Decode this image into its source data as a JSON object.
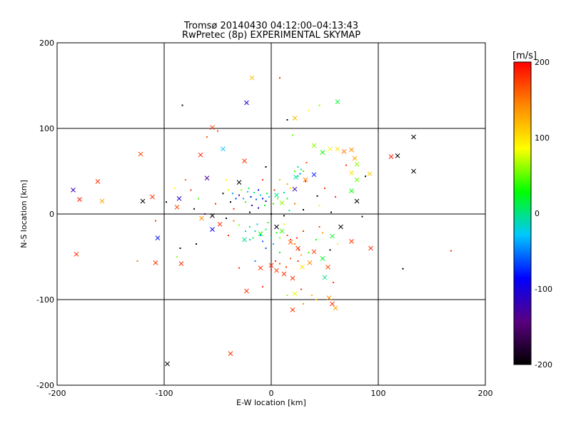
{
  "chart_data": {
    "type": "scatter",
    "title": "Tromsø 20140430 04:12:00–04:13:43",
    "subtitle": "RwPretec (8p) EXPERIMENTAL SKYMAP",
    "xlabel": "E-W location [km]",
    "ylabel": "N-S location [km]",
    "xlim": [
      -200,
      200
    ],
    "ylim": [
      -200,
      200
    ],
    "x_ticks": [
      -200,
      -100,
      0,
      100,
      200
    ],
    "y_ticks": [
      -200,
      -100,
      0,
      100,
      200
    ],
    "grid": true,
    "colorbar": {
      "label": "[m/s]",
      "min": -200,
      "max": 200,
      "ticks": [
        200,
        100,
        0,
        -100,
        -200
      ],
      "colors": [
        "#000000",
        "#5a0080",
        "#0000ff",
        "#00c8ff",
        "#00ff00",
        "#ffff00",
        "#ff8800",
        "#ff0000"
      ]
    },
    "series": [
      {
        "marker": "x",
        "points": [
          {
            "x": -23,
            "y": 130,
            "v": -110
          },
          {
            "x": -18,
            "y": 159,
            "v": 120
          },
          {
            "x": 22,
            "y": 112,
            "v": 120
          },
          {
            "x": 62,
            "y": 131,
            "v": 20
          },
          {
            "x": 133,
            "y": 90,
            "v": -200
          },
          {
            "x": 118,
            "y": 68,
            "v": -200
          },
          {
            "x": 133,
            "y": 50,
            "v": -200
          },
          {
            "x": 112,
            "y": 67,
            "v": 190
          },
          {
            "x": -55,
            "y": 101,
            "v": 180
          },
          {
            "x": -122,
            "y": 70,
            "v": 170
          },
          {
            "x": -66,
            "y": 69,
            "v": 190
          },
          {
            "x": -45,
            "y": 76,
            "v": -30
          },
          {
            "x": -25,
            "y": 62,
            "v": 180
          },
          {
            "x": -185,
            "y": 28,
            "v": -120
          },
          {
            "x": -162,
            "y": 38,
            "v": 180
          },
          {
            "x": -179,
            "y": 17,
            "v": 190
          },
          {
            "x": -158,
            "y": 15,
            "v": 130
          },
          {
            "x": -120,
            "y": 15,
            "v": -200
          },
          {
            "x": -111,
            "y": 20,
            "v": 180
          },
          {
            "x": -86,
            "y": 18,
            "v": -110
          },
          {
            "x": -60,
            "y": 42,
            "v": -130
          },
          {
            "x": -88,
            "y": 8,
            "v": 170
          },
          {
            "x": -30,
            "y": 37,
            "v": -200
          },
          {
            "x": -106,
            "y": -28,
            "v": -80
          },
          {
            "x": -108,
            "y": -57,
            "v": 180
          },
          {
            "x": -182,
            "y": -47,
            "v": 180
          },
          {
            "x": -84,
            "y": -58,
            "v": 180
          },
          {
            "x": 40,
            "y": 80,
            "v": 60
          },
          {
            "x": 48,
            "y": 72,
            "v": 30
          },
          {
            "x": 55,
            "y": 76,
            "v": 80
          },
          {
            "x": 62,
            "y": 76,
            "v": 100
          },
          {
            "x": 68,
            "y": 73,
            "v": 150
          },
          {
            "x": 75,
            "y": 75,
            "v": 140
          },
          {
            "x": 78,
            "y": 65,
            "v": 130
          },
          {
            "x": 80,
            "y": 58,
            "v": 60
          },
          {
            "x": 75,
            "y": 48,
            "v": 100
          },
          {
            "x": 80,
            "y": 40,
            "v": 50
          },
          {
            "x": 92,
            "y": 47,
            "v": 110
          },
          {
            "x": 75,
            "y": 27,
            "v": 30
          },
          {
            "x": 80,
            "y": 15,
            "v": -200
          },
          {
            "x": 40,
            "y": 46,
            "v": -80
          },
          {
            "x": 32,
            "y": 40,
            "v": 150
          },
          {
            "x": 23,
            "y": 43,
            "v": -10
          },
          {
            "x": 22,
            "y": 29,
            "v": -120
          },
          {
            "x": 5,
            "y": 22,
            "v": 0
          },
          {
            "x": 10,
            "y": 13,
            "v": 60
          },
          {
            "x": 65,
            "y": -15,
            "v": -200
          },
          {
            "x": 75,
            "y": -32,
            "v": 180
          },
          {
            "x": 93,
            "y": -40,
            "v": 180
          },
          {
            "x": 57,
            "y": -26,
            "v": 20
          },
          {
            "x": 48,
            "y": -52,
            "v": 20
          },
          {
            "x": 53,
            "y": -62,
            "v": 170
          },
          {
            "x": 36,
            "y": -57,
            "v": 140
          },
          {
            "x": 29,
            "y": -62,
            "v": 100
          },
          {
            "x": 50,
            "y": -74,
            "v": 0
          },
          {
            "x": 40,
            "y": -44,
            "v": 180
          },
          {
            "x": 25,
            "y": -40,
            "v": 180
          },
          {
            "x": 18,
            "y": -33,
            "v": 160
          },
          {
            "x": 0,
            "y": -60,
            "v": 180
          },
          {
            "x": 5,
            "y": -66,
            "v": 180
          },
          {
            "x": 12,
            "y": -70,
            "v": 180
          },
          {
            "x": -10,
            "y": -63,
            "v": 180
          },
          {
            "x": 20,
            "y": -75,
            "v": 180
          },
          {
            "x": 20,
            "y": -112,
            "v": 180
          },
          {
            "x": 60,
            "y": -110,
            "v": 130
          },
          {
            "x": 57,
            "y": -105,
            "v": 180
          },
          {
            "x": 54,
            "y": -98,
            "v": 140
          },
          {
            "x": 22,
            "y": -93,
            "v": 80
          },
          {
            "x": -23,
            "y": -90,
            "v": 180
          },
          {
            "x": -38,
            "y": -163,
            "v": 180
          },
          {
            "x": -97,
            "y": -175,
            "v": -200
          },
          {
            "x": -10,
            "y": -23,
            "v": 30
          },
          {
            "x": -25,
            "y": -30,
            "v": 0
          },
          {
            "x": 10,
            "y": -20,
            "v": 40
          },
          {
            "x": 5,
            "y": -15,
            "v": -200
          },
          {
            "x": -55,
            "y": -2,
            "v": -200
          },
          {
            "x": -48,
            "y": -12,
            "v": 180
          },
          {
            "x": -55,
            "y": -18,
            "v": -90
          },
          {
            "x": -65,
            "y": -5,
            "v": 140
          }
        ]
      },
      {
        "marker": "dot",
        "points": [
          {
            "x": 15,
            "y": 110,
            "v": -200
          },
          {
            "x": -50,
            "y": 97,
            "v": 170
          },
          {
            "x": 8,
            "y": 159,
            "v": 180
          },
          {
            "x": -83,
            "y": 127,
            "v": -200
          },
          {
            "x": 35,
            "y": 121,
            "v": 90
          },
          {
            "x": 45,
            "y": 127,
            "v": 60
          },
          {
            "x": 20,
            "y": 92,
            "v": 50
          },
          {
            "x": 168,
            "y": -43,
            "v": 180
          },
          {
            "x": 123,
            "y": -64,
            "v": -200
          },
          {
            "x": 85,
            "y": -3,
            "v": -200
          },
          {
            "x": 56,
            "y": 2,
            "v": -200
          },
          {
            "x": 55,
            "y": -42,
            "v": -200
          },
          {
            "x": 33,
            "y": 60,
            "v": 170
          },
          {
            "x": 43,
            "y": 21,
            "v": -200
          },
          {
            "x": 50,
            "y": 30,
            "v": 180
          },
          {
            "x": 45,
            "y": 10,
            "v": 90
          },
          {
            "x": 30,
            "y": 5,
            "v": -200
          },
          {
            "x": -72,
            "y": 6,
            "v": -200
          },
          {
            "x": -68,
            "y": 18,
            "v": 40
          },
          {
            "x": -62,
            "y": 0,
            "v": -150
          },
          {
            "x": -52,
            "y": 12,
            "v": 180
          },
          {
            "x": -45,
            "y": 24,
            "v": -200
          },
          {
            "x": -40,
            "y": 28,
            "v": 80
          },
          {
            "x": -38,
            "y": 14,
            "v": -200
          },
          {
            "x": -35,
            "y": 6,
            "v": 180
          },
          {
            "x": -75,
            "y": 28,
            "v": 180
          },
          {
            "x": -90,
            "y": 30,
            "v": 90
          },
          {
            "x": -98,
            "y": 14,
            "v": -200
          },
          {
            "x": -42,
            "y": -5,
            "v": -200
          },
          {
            "x": -30,
            "y": -13,
            "v": 60
          },
          {
            "x": -20,
            "y": 2,
            "v": -200
          },
          {
            "x": -12,
            "y": 7,
            "v": -120
          },
          {
            "x": 0,
            "y": 0,
            "v": -200
          },
          {
            "x": 12,
            "y": -2,
            "v": -200
          },
          {
            "x": 17,
            "y": 4,
            "v": 0
          },
          {
            "x": 22,
            "y": 12,
            "v": 150
          },
          {
            "x": -5,
            "y": 15,
            "v": -100
          },
          {
            "x": 3,
            "y": 28,
            "v": 180
          },
          {
            "x": 18,
            "y": 30,
            "v": 100
          },
          {
            "x": 8,
            "y": 40,
            "v": 120
          },
          {
            "x": -8,
            "y": 40,
            "v": 180
          },
          {
            "x": -80,
            "y": 40,
            "v": 160
          },
          {
            "x": -42,
            "y": 40,
            "v": 90
          },
          {
            "x": -35,
            "y": -8,
            "v": 150
          },
          {
            "x": -5,
            "y": -40,
            "v": -60
          },
          {
            "x": -20,
            "y": -30,
            "v": -20
          },
          {
            "x": 30,
            "y": -20,
            "v": 180
          },
          {
            "x": 45,
            "y": -15,
            "v": 170
          },
          {
            "x": 42,
            "y": -30,
            "v": 30
          },
          {
            "x": 35,
            "y": -45,
            "v": 40
          },
          {
            "x": 25,
            "y": -55,
            "v": 180
          },
          {
            "x": 8,
            "y": -45,
            "v": 20
          },
          {
            "x": -70,
            "y": -35,
            "v": -200
          },
          {
            "x": -85,
            "y": -40,
            "v": -200
          },
          {
            "x": -125,
            "y": -55,
            "v": 150
          },
          {
            "x": -108,
            "y": -8,
            "v": 180
          },
          {
            "x": -88,
            "y": -50,
            "v": 60
          },
          {
            "x": -40,
            "y": -25,
            "v": 180
          },
          {
            "x": -30,
            "y": -63,
            "v": 180
          },
          {
            "x": -15,
            "y": -55,
            "v": -50
          },
          {
            "x": 62,
            "y": -35,
            "v": 80
          },
          {
            "x": 48,
            "y": -22,
            "v": 130
          },
          {
            "x": 58,
            "y": -80,
            "v": 180
          },
          {
            "x": 38,
            "y": -95,
            "v": 120
          },
          {
            "x": 42,
            "y": -100,
            "v": 110
          },
          {
            "x": 30,
            "y": -105,
            "v": 140
          },
          {
            "x": 15,
            "y": -95,
            "v": 60
          },
          {
            "x": 28,
            "y": -88,
            "v": 180
          },
          {
            "x": -8,
            "y": -85,
            "v": 180
          },
          {
            "x": -5,
            "y": 55,
            "v": -200
          },
          {
            "x": 25,
            "y": 55,
            "v": 0
          },
          {
            "x": 30,
            "y": 50,
            "v": 40
          },
          {
            "x": 27,
            "y": 47,
            "v": -50
          },
          {
            "x": 32,
            "y": 38,
            "v": 180
          },
          {
            "x": 70,
            "y": 57,
            "v": 180
          },
          {
            "x": 88,
            "y": 44,
            "v": -200
          },
          {
            "x": 60,
            "y": 20,
            "v": 180
          },
          {
            "x": -60,
            "y": 90,
            "v": 160
          },
          {
            "x": -30,
            "y": 22,
            "v": -110
          },
          {
            "x": -26,
            "y": 18,
            "v": -40
          },
          {
            "x": -22,
            "y": 26,
            "v": -30
          },
          {
            "x": -19,
            "y": 20,
            "v": -90
          },
          {
            "x": -16,
            "y": 25,
            "v": 0
          },
          {
            "x": -14,
            "y": 17,
            "v": -60
          },
          {
            "x": -10,
            "y": 22,
            "v": -20
          },
          {
            "x": -8,
            "y": 18,
            "v": -100
          },
          {
            "x": -4,
            "y": 24,
            "v": 10
          },
          {
            "x": -24,
            "y": 14,
            "v": 40
          },
          {
            "x": -33,
            "y": 18,
            "v": -70
          },
          {
            "x": -28,
            "y": 28,
            "v": 60
          },
          {
            "x": -12,
            "y": 28,
            "v": -80
          },
          {
            "x": -2,
            "y": 20,
            "v": -30
          },
          {
            "x": -6,
            "y": 10,
            "v": 20
          },
          {
            "x": -18,
            "y": 10,
            "v": -120
          },
          {
            "x": 2,
            "y": 12,
            "v": 30
          },
          {
            "x": 6,
            "y": 18,
            "v": 50
          },
          {
            "x": -36,
            "y": 24,
            "v": -40
          },
          {
            "x": -21,
            "y": 30,
            "v": 20
          },
          {
            "x": -15,
            "y": -20,
            "v": -20
          },
          {
            "x": -10,
            "y": -25,
            "v": -40
          },
          {
            "x": -5,
            "y": -18,
            "v": 10
          },
          {
            "x": 0,
            "y": -28,
            "v": -10
          },
          {
            "x": 5,
            "y": -22,
            "v": 30
          },
          {
            "x": -20,
            "y": -15,
            "v": 0
          },
          {
            "x": -8,
            "y": -32,
            "v": -60
          },
          {
            "x": 2,
            "y": -35,
            "v": -30
          },
          {
            "x": 8,
            "y": -28,
            "v": 60
          },
          {
            "x": -13,
            "y": -12,
            "v": -30
          },
          {
            "x": -3,
            "y": -10,
            "v": 40
          },
          {
            "x": -17,
            "y": -28,
            "v": 20
          },
          {
            "x": 12,
            "y": -12,
            "v": 80
          },
          {
            "x": -24,
            "y": -20,
            "v": -10
          },
          {
            "x": 15,
            "y": -25,
            "v": 170
          },
          {
            "x": 18,
            "y": -30,
            "v": 180
          },
          {
            "x": 22,
            "y": -35,
            "v": 150
          },
          {
            "x": 26,
            "y": -42,
            "v": 180
          },
          {
            "x": 28,
            "y": -48,
            "v": 130
          },
          {
            "x": 24,
            "y": -28,
            "v": 180
          },
          {
            "x": 4,
            "y": -55,
            "v": 180
          },
          {
            "x": 8,
            "y": -58,
            "v": 170
          },
          {
            "x": 14,
            "y": -62,
            "v": 180
          },
          {
            "x": 0,
            "y": -65,
            "v": 180
          },
          {
            "x": 18,
            "y": -52,
            "v": 160
          },
          {
            "x": 25,
            "y": 44,
            "v": 20
          },
          {
            "x": 28,
            "y": 52,
            "v": -10
          },
          {
            "x": 22,
            "y": 50,
            "v": 40
          },
          {
            "x": 15,
            "y": 35,
            "v": 130
          },
          {
            "x": 12,
            "y": 25,
            "v": 0
          },
          {
            "x": 15,
            "y": 18,
            "v": 30
          }
        ]
      }
    ]
  }
}
